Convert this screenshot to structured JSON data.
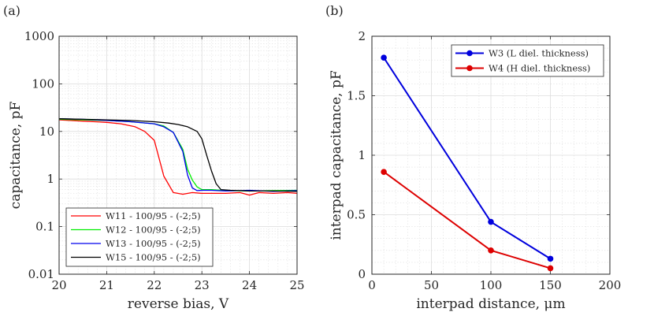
{
  "chart_data": [
    {
      "panel_label": "(a)",
      "type": "line",
      "title": "",
      "xlabel": "reverse bias, V",
      "ylabel": "capacitance, pF",
      "xlim": [
        20,
        25
      ],
      "ylim": [
        0.01,
        1000
      ],
      "yscale": "log",
      "grid": true,
      "legend_position": "bottom-left",
      "x_ticks": [
        20,
        21,
        22,
        23,
        24,
        25
      ],
      "x_tick_labels": [
        "20",
        "21",
        "22",
        "23",
        "24",
        "25"
      ],
      "y_ticks": [
        0.01,
        0.1,
        1,
        10,
        100,
        1000
      ],
      "y_tick_labels": [
        "0.01",
        "0.1",
        "1",
        "10",
        "100",
        "1000"
      ],
      "series": [
        {
          "name": "W11 - 100/95 - (-2;5)",
          "color": "#ff0000",
          "x": [
            20,
            20.5,
            21,
            21.3,
            21.6,
            21.8,
            22,
            22.2,
            22.4,
            22.6,
            22.8,
            23,
            23.2,
            23.5,
            23.8,
            24,
            24.2,
            24.5,
            24.8,
            25
          ],
          "y": [
            17.5,
            16.5,
            15.5,
            14.5,
            12.5,
            10,
            6.5,
            1.15,
            0.52,
            0.48,
            0.52,
            0.5,
            0.5,
            0.5,
            0.52,
            0.46,
            0.52,
            0.5,
            0.52,
            0.5
          ]
        },
        {
          "name": "W12 - 100/95 - (-2;5)",
          "color": "#00ee00",
          "x": [
            20,
            20.5,
            21,
            21.5,
            22,
            22.2,
            22.4,
            22.6,
            22.7,
            22.8,
            22.9,
            23,
            23.2,
            23.5,
            24,
            24.5,
            25
          ],
          "y": [
            18,
            17.5,
            17,
            16,
            14.5,
            13,
            9.5,
            4.2,
            1.6,
            0.95,
            0.68,
            0.6,
            0.6,
            0.57,
            0.56,
            0.57,
            0.58
          ]
        },
        {
          "name": "W13 - 100/95 - (-2;5)",
          "color": "#0000ee",
          "x": [
            20,
            20.5,
            21,
            21.5,
            22,
            22.2,
            22.4,
            22.6,
            22.7,
            22.8,
            22.9,
            23,
            23.2,
            23.5,
            24,
            24.5,
            25
          ],
          "y": [
            18.5,
            18,
            17,
            16,
            14.5,
            12.5,
            9.5,
            3.8,
            1.2,
            0.65,
            0.57,
            0.58,
            0.58,
            0.56,
            0.58,
            0.55,
            0.57
          ]
        },
        {
          "name": "W15 - 100/95 - (-2;5)",
          "color": "#000000",
          "x": [
            20,
            20.5,
            21,
            21.5,
            22,
            22.3,
            22.5,
            22.7,
            22.9,
            23,
            23.1,
            23.2,
            23.3,
            23.4,
            23.6,
            24,
            24.5,
            25
          ],
          "y": [
            18.5,
            18,
            17.5,
            17,
            16,
            15,
            14,
            12.5,
            10,
            7,
            3.2,
            1.5,
            0.8,
            0.6,
            0.58,
            0.56,
            0.56,
            0.55
          ]
        }
      ]
    },
    {
      "panel_label": "(b)",
      "type": "line",
      "title": "",
      "xlabel": "interpad distance, μm",
      "ylabel": "interpad capacitance, pF",
      "xlim": [
        0,
        200
      ],
      "ylim": [
        0,
        2
      ],
      "yscale": "linear",
      "grid": true,
      "legend_position": "top-right",
      "x_ticks": [
        0,
        50,
        100,
        150,
        200
      ],
      "x_tick_labels": [
        "0",
        "50",
        "100",
        "150",
        "200"
      ],
      "y_ticks": [
        0,
        0.5,
        1,
        1.5,
        2
      ],
      "y_tick_labels": [
        "0",
        "0.5",
        "1",
        "1.5",
        "2"
      ],
      "series": [
        {
          "name": "W3 (L diel. thickness)",
          "color": "#0000dd",
          "x": [
            10,
            100,
            150
          ],
          "y": [
            1.82,
            0.44,
            0.13
          ]
        },
        {
          "name": "W4 (H diel. thickness)",
          "color": "#dd0000",
          "x": [
            10,
            100,
            150
          ],
          "y": [
            0.86,
            0.2,
            0.05
          ]
        }
      ]
    }
  ]
}
